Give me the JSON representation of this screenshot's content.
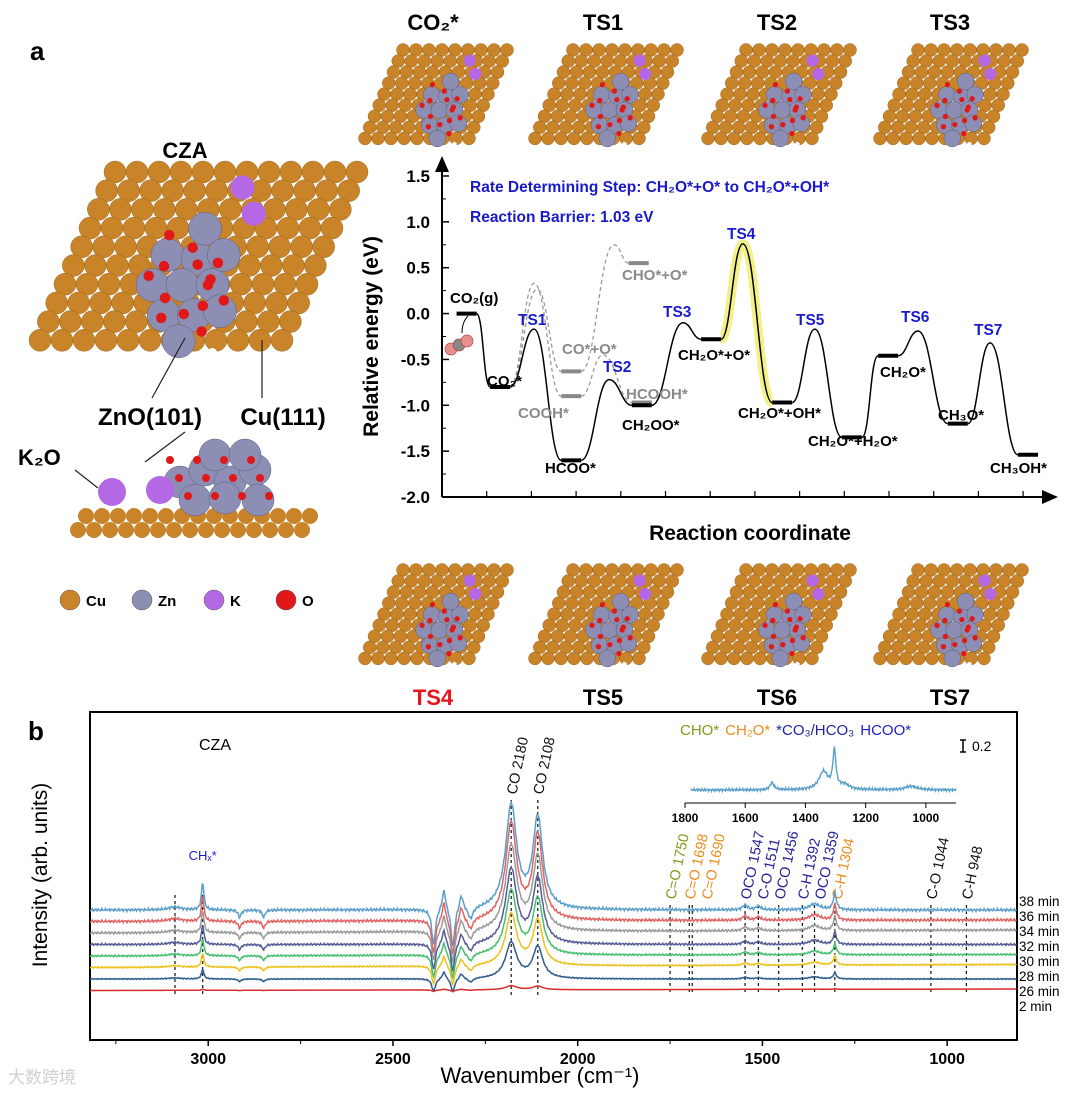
{
  "panel_labels": {
    "a": "a",
    "b": "b"
  },
  "structures": {
    "top": [
      "CO₂*",
      "TS1",
      "TS2",
      "TS3"
    ],
    "bottom": [
      "TS4",
      "TS5",
      "TS6",
      "TS7"
    ],
    "highlight_color": "#e8141c",
    "cza": "CZA",
    "zno": "ZnO(101)",
    "cu": "Cu(111)",
    "k2o": "K₂O"
  },
  "legend": [
    {
      "label": "Cu",
      "color": "#c98429"
    },
    {
      "label": "Zn",
      "color": "#8c8fb3"
    },
    {
      "label": "K",
      "color": "#b468e6"
    },
    {
      "label": "O",
      "color": "#e01818"
    }
  ],
  "watermark": "大数跨境",
  "chart_data": [
    {
      "type": "line",
      "title": "Rate Determining Step: CH₂O*+O* to CH₂O*+OH*",
      "subtitle": "Reaction Barrier: 1.03 eV",
      "xlabel": "Reaction coordinate",
      "ylabel": "Relative energy (eV)",
      "ylim": [
        -2.0,
        1.5
      ],
      "yticks": [
        "-2.0",
        "-1.5",
        "-1.0",
        "-0.5",
        "0.0",
        "0.5",
        "1.0",
        "1.5"
      ],
      "main_path": [
        {
          "label": "CO₂(g)",
          "energy": 0.0,
          "kind": "level",
          "step": 0.55
        },
        {
          "label": "CO₂*",
          "energy": -0.8,
          "kind": "level",
          "step": 1.3
        },
        {
          "label": "TS1",
          "energy": -0.17,
          "kind": "ts",
          "step": 2.06
        },
        {
          "label": "HCOO*",
          "energy": -1.6,
          "kind": "level",
          "step": 2.89
        },
        {
          "label": "TS2",
          "energy": -0.72,
          "kind": "ts",
          "step": 3.74
        },
        {
          "label": "CH₂OO*",
          "energy": -1.0,
          "kind": "level",
          "step": 4.47
        },
        {
          "label": "TS3",
          "energy": -0.1,
          "kind": "ts",
          "step": 5.39
        },
        {
          "label": "CH₂O*+O*",
          "energy": -0.28,
          "kind": "level",
          "step": 6.02
        },
        {
          "label": "TS4",
          "energy": 0.76,
          "kind": "ts",
          "step": 6.73
        },
        {
          "label": "CH₂O*+OH*",
          "energy": -0.97,
          "kind": "level",
          "step": 7.61
        },
        {
          "label": "TS5",
          "energy": -0.17,
          "kind": "ts",
          "step": 8.34
        },
        {
          "label": "CH₂O*+H₂O*",
          "energy": -1.35,
          "kind": "level",
          "step": 9.17
        },
        {
          "label": "CH₂O*",
          "energy": -0.46,
          "kind": "level",
          "step": 9.98
        },
        {
          "label": "TS6",
          "energy": -0.19,
          "kind": "ts",
          "step": 10.65
        },
        {
          "label": "CH₃O*",
          "energy": -1.2,
          "kind": "level",
          "step": 11.54
        },
        {
          "label": "TS7",
          "energy": -0.32,
          "kind": "ts",
          "step": 12.26
        },
        {
          "label": "CH₃OH*",
          "energy": -1.54,
          "kind": "level",
          "step": 13.11
        }
      ],
      "side_path": [
        {
          "label": "COOH*",
          "energy": -0.9,
          "step": 2.89
        },
        {
          "label": "CO*+O*",
          "energy": -0.63,
          "step": 2.89
        },
        {
          "label": "HCOOH*",
          "energy": -0.97,
          "step": 4.47
        },
        {
          "label": "CHO*+O*",
          "energy": 0.55,
          "step": 4.4
        }
      ],
      "side_ts": [
        {
          "energy": 0.33,
          "step": 2.06
        },
        {
          "energy": -0.45,
          "step": 3.6
        },
        {
          "energy": 0.75,
          "step": 3.85
        }
      ],
      "rds_highlight_color": "#f3f08a",
      "ts_label_color": "#1a1acc",
      "side_color": "#8a8a8a"
    },
    {
      "type": "line",
      "title": "CZA",
      "xlabel": "Wavenumber (cm⁻¹)",
      "ylabel": "Intensity (arb. units)",
      "xlim": [
        3320,
        811
      ],
      "xticks": [
        "3000",
        "2500",
        "2000",
        "1500",
        "1000"
      ],
      "scale_bar_label": "0.2",
      "series": [
        {
          "name": "38 min",
          "color": "#5a9fcc",
          "relative_scale": 1.0
        },
        {
          "name": "36 min",
          "color": "#e06464",
          "relative_scale": 0.93
        },
        {
          "name": "34 min",
          "color": "#9a9a9a",
          "relative_scale": 0.82
        },
        {
          "name": "32 min",
          "color": "#565c96",
          "relative_scale": 0.72
        },
        {
          "name": "30 min",
          "color": "#46c070",
          "relative_scale": 0.62
        },
        {
          "name": "28 min",
          "color": "#ecc21e",
          "relative_scale": 0.5
        },
        {
          "name": "26 min",
          "color": "#2e5c8c",
          "relative_scale": 0.35
        },
        {
          "name": "2 min",
          "color": "#d82c2c",
          "relative_scale": 0.04
        }
      ],
      "peaks": [
        {
          "wn": 3015,
          "height": 0.45,
          "width": 4
        },
        {
          "wn": 3090,
          "height": 0.05,
          "width": 20
        },
        {
          "wn": 2915,
          "height": -0.12,
          "width": 5
        },
        {
          "wn": 2850,
          "height": -0.12,
          "width": 5
        },
        {
          "wn": 2390,
          "height": -0.6,
          "width": 6
        },
        {
          "wn": 2362,
          "height": 0.35,
          "width": 6
        },
        {
          "wn": 2338,
          "height": -0.65,
          "width": 6
        },
        {
          "wn": 2315,
          "height": 0.25,
          "width": 6
        },
        {
          "wn": 2290,
          "height": -0.2,
          "width": 8
        },
        {
          "wn": 2180,
          "height": 1.72,
          "width": 18
        },
        {
          "wn": 2108,
          "height": 1.5,
          "width": 16
        },
        {
          "wn": 1547,
          "height": 0.08,
          "width": 8
        },
        {
          "wn": 1511,
          "height": 0.06,
          "width": 8
        },
        {
          "wn": 1359,
          "height": 0.1,
          "width": 18
        },
        {
          "wn": 1304,
          "height": 0.28,
          "width": 5
        }
      ],
      "chx_label": "CHₓ*",
      "bands": [
        {
          "wn": 3090,
          "label": ""
        },
        {
          "wn": 3015,
          "label": ""
        },
        {
          "wn": 2180,
          "label": "CO 2180",
          "color": "#111111"
        },
        {
          "wn": 2108,
          "label": "CO 2108",
          "color": "#111111"
        },
        {
          "wn": 1750,
          "label": "C=O 1750",
          "color": "#7f9a1c"
        },
        {
          "wn": 1698,
          "label": "C=O 1698",
          "color": "#ec8c1c"
        },
        {
          "wn": 1690,
          "label": "C=O 1690",
          "color": "#ec8c1c"
        },
        {
          "wn": 1547,
          "label": "OCO 1547",
          "color": "#22229a"
        },
        {
          "wn": 1511,
          "label": "C-O 1511",
          "color": "#22229a"
        },
        {
          "wn": 1456,
          "label": "OCO 1456",
          "color": "#22229a"
        },
        {
          "wn": 1392,
          "label": "C-H 1392",
          "color": "#22229a"
        },
        {
          "wn": 1359,
          "label": "OCO 1359",
          "color": "#22229a"
        },
        {
          "wn": 1304,
          "label": "C-H 1304",
          "color": "#ec8c1c"
        },
        {
          "wn": 1044,
          "label": "C-O 1044",
          "color": "#111111"
        },
        {
          "wn": 948,
          "label": "C-H 948",
          "color": "#111111"
        }
      ],
      "inset": {
        "legend": [
          {
            "label": "CHO*",
            "color": "#7f9a1c"
          },
          {
            "label": "CH₂O*",
            "color": "#ec8c1c"
          },
          {
            "label": "*CO₃/HCO₃",
            "color": "#22229a"
          },
          {
            "label": "HCOO*",
            "color": "#2020c8"
          }
        ],
        "xlim": [
          1800,
          900
        ],
        "xticks": [
          "1800",
          "1600",
          "1400",
          "1200",
          "1000"
        ],
        "color": "#5a9fcc",
        "peaks": [
          {
            "wn": 1304,
            "height": 0.62,
            "width": 6
          },
          {
            "wn": 1340,
            "height": 0.3,
            "width": 18
          },
          {
            "wn": 1511,
            "height": 0.12,
            "width": 8
          },
          {
            "wn": 1270,
            "height": 0.08,
            "width": 20
          },
          {
            "wn": 1050,
            "height": 0.06,
            "width": 25
          }
        ]
      }
    }
  ]
}
